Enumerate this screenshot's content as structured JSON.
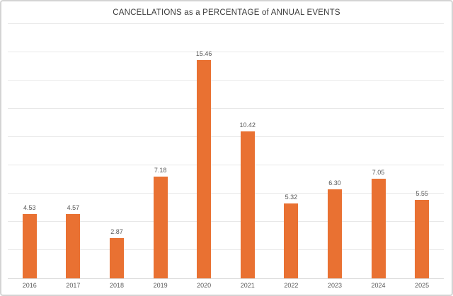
{
  "chart_data": {
    "type": "bar",
    "title": "CANCELLATIONS as a PERCENTAGE of ANNUAL EVENTS",
    "categories": [
      "2016",
      "2017",
      "2018",
      "2019",
      "2020",
      "2021",
      "2022",
      "2023",
      "2024",
      "2025"
    ],
    "values": [
      4.53,
      4.57,
      2.87,
      7.18,
      15.46,
      10.42,
      5.32,
      6.3,
      7.05,
      5.55
    ],
    "value_labels": [
      "4.53",
      "4.57",
      "2.87",
      "7.18",
      "15.46",
      "10.42",
      "5.32",
      "6.30",
      "7.05",
      "5.55"
    ],
    "xlabel": "",
    "ylabel": "",
    "ylim": [
      0,
      18
    ],
    "gridline_step": 2,
    "grid": true,
    "legend": false,
    "y_tick_labels_shown": false,
    "colors": {
      "bar": "#e97132",
      "value_label": "#595959",
      "x_axis_label": "#595959",
      "gridline": "#e8e8e8",
      "axis_line": "#d9d9d9",
      "title": "#3b3b3b",
      "frame_border": "#d4d4d4",
      "background": "#ffffff"
    }
  }
}
